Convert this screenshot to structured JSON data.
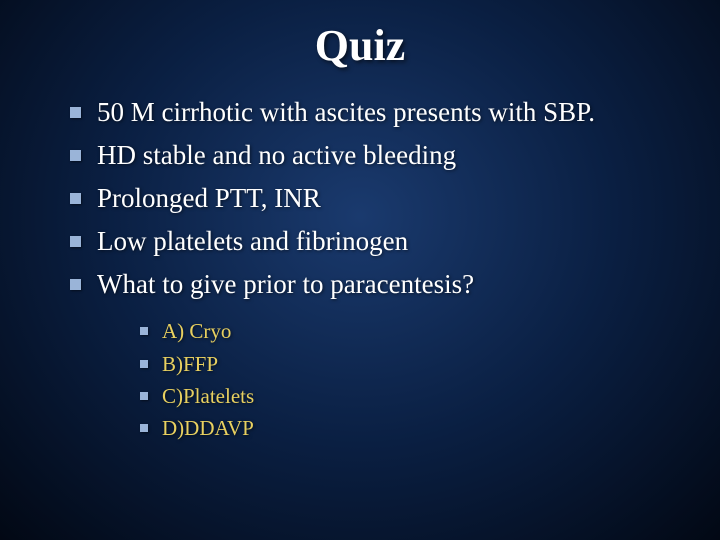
{
  "title": "Quiz",
  "mainItems": [
    "50 M cirrhotic with ascites presents with SBP.",
    "HD stable and no active bleeding",
    "Prolonged PTT, INR",
    "Low platelets and fibrinogen",
    "What to give prior to paracentesis?"
  ],
  "subItems": [
    "A) Cryo",
    "B)FFP",
    "C)Platelets",
    "D)DDAVP"
  ],
  "colors": {
    "bulletColor": "#9ab4d8",
    "mainTextColor": "#ffffff",
    "subTextColor": "#e8d060",
    "bgCenter": "#1a3a6e",
    "bgMid": "#0a1f42",
    "bgEdge": "#020814"
  },
  "typography": {
    "titleFontSize": 44,
    "mainFontSize": 27,
    "subFontSize": 21,
    "fontFamily": "Georgia, Times New Roman, serif"
  }
}
